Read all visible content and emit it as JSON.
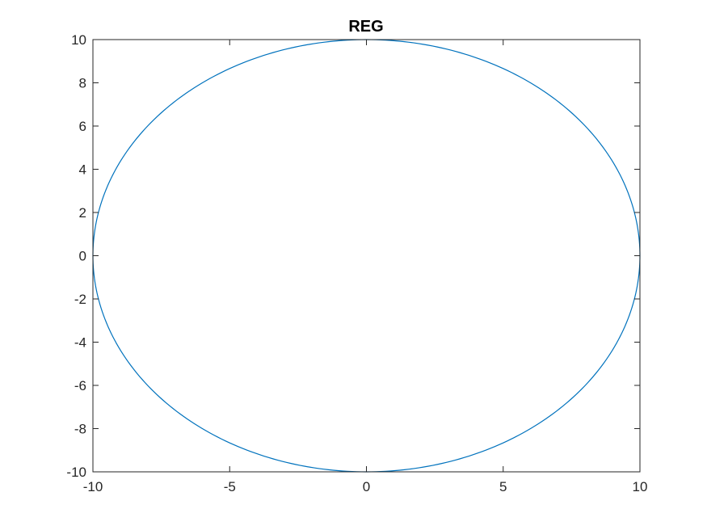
{
  "chart_data": {
    "type": "line",
    "title": "REG",
    "xlabel": "",
    "ylabel": "",
    "xlim": [
      -10,
      10
    ],
    "ylim": [
      -10,
      10
    ],
    "x_ticks": [
      -10,
      -5,
      0,
      5,
      10
    ],
    "y_ticks": [
      -10,
      -8,
      -6,
      -4,
      -2,
      0,
      2,
      4,
      6,
      8,
      10
    ],
    "grid": false,
    "legend": "none",
    "series": [
      {
        "shape": "circle",
        "center": [
          0,
          0
        ],
        "radius": 10,
        "color": "#0072BD"
      }
    ]
  }
}
